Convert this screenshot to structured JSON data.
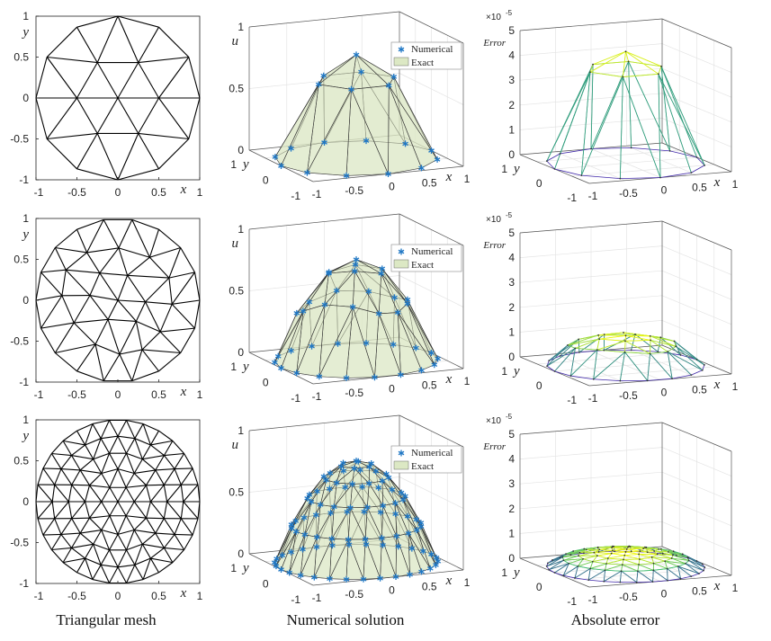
{
  "column_titles": [
    "Triangular mesh",
    "Numerical solution",
    "Absolute error"
  ],
  "colors": {
    "mesh": "#000000",
    "numerical_marker": "#1f77c4",
    "exact_fill": "#dce8c4",
    "error_low": "#3e26a8",
    "error_mid": "#35b779",
    "error_high": "#f9fb0e"
  },
  "chart_data": [
    {
      "row": 1,
      "type": "mesh",
      "column": "Triangular mesh",
      "xlabel": "x",
      "ylabel": "y",
      "xticks": [
        "-1",
        "-0.5",
        "0",
        "0.5",
        "1"
      ],
      "yticks": [
        "1",
        "0.5",
        "0",
        "-0.5",
        "-1"
      ],
      "xlim": [
        -1,
        1
      ],
      "ylim": [
        -1,
        1
      ],
      "rings": 2
    },
    {
      "row": 1,
      "type": "surface3d",
      "column": "Numerical solution",
      "xlabel": "x",
      "ylabel": "y",
      "zlabel": "u",
      "xticks": [
        "-1",
        "-0.5",
        "0",
        "0.5",
        "1"
      ],
      "yticks": [
        "1",
        "0",
        "-1"
      ],
      "zticks": [
        "0",
        "0.5",
        "1"
      ],
      "zlim": [
        0,
        1
      ],
      "u_max": 0.84,
      "legend": [
        "Numerical",
        "Exact"
      ],
      "legend_placement": "right"
    },
    {
      "row": 1,
      "type": "mesh3d",
      "column": "Absolute error",
      "xlabel": "x",
      "ylabel": "y",
      "zlabel": "Error",
      "zmultiplier": "×10",
      "zexponent": "-5",
      "xticks": [
        "-1",
        "-0.5",
        "0",
        "0.5",
        "1"
      ],
      "yticks": [
        "1",
        "0",
        "-1"
      ],
      "zticks": [
        "0",
        "1",
        "2",
        "3",
        "4",
        "5"
      ],
      "zlim": [
        0,
        5
      ],
      "error_max": 4.5
    },
    {
      "row": 2,
      "type": "mesh",
      "column": "Triangular mesh",
      "xlabel": "x",
      "ylabel": "y",
      "xticks": [
        "-1",
        "-0.5",
        "0",
        "0.5",
        "1"
      ],
      "yticks": [
        "1",
        "0.5",
        "0",
        "-0.5",
        "-1"
      ],
      "xlim": [
        -1,
        1
      ],
      "ylim": [
        -1,
        1
      ],
      "rings": 3
    },
    {
      "row": 2,
      "type": "surface3d",
      "column": "Numerical solution",
      "xlabel": "x",
      "ylabel": "y",
      "zlabel": "u",
      "xticks": [
        "-1",
        "-0.5",
        "0",
        "0.5",
        "1"
      ],
      "yticks": [
        "1",
        "0",
        "-1"
      ],
      "zticks": [
        "0",
        "0.5",
        "1"
      ],
      "zlim": [
        0,
        1
      ],
      "u_max": 0.82,
      "legend": [
        "Numerical",
        "Exact"
      ],
      "legend_placement": "right"
    },
    {
      "row": 2,
      "type": "mesh3d",
      "column": "Absolute error",
      "xlabel": "x",
      "ylabel": "y",
      "zlabel": "Error",
      "zmultiplier": "×10",
      "zexponent": "-5",
      "xticks": [
        "-1",
        "-0.5",
        "0",
        "0.5",
        "1"
      ],
      "yticks": [
        "1",
        "0",
        "-1"
      ],
      "zticks": [
        "0",
        "1",
        "2",
        "3",
        "4",
        "5"
      ],
      "zlim": [
        0,
        5
      ],
      "error_max": 1.2
    },
    {
      "row": 3,
      "type": "mesh",
      "column": "Triangular mesh",
      "xlabel": "x",
      "ylabel": "y",
      "xticks": [
        "-1",
        "-0.5",
        "0",
        "0.5",
        "1"
      ],
      "yticks": [
        "1",
        "0.5",
        "0",
        "-0.5",
        "-1"
      ],
      "xlim": [
        -1,
        1
      ],
      "ylim": [
        -1,
        1
      ],
      "rings": 5
    },
    {
      "row": 3,
      "type": "surface3d",
      "column": "Numerical solution",
      "xlabel": "x",
      "ylabel": "y",
      "zlabel": "u",
      "xticks": [
        "-1",
        "-0.5",
        "0",
        "0.5",
        "1"
      ],
      "yticks": [
        "1",
        "0",
        "-1"
      ],
      "zticks": [
        "0",
        "0.5",
        "1"
      ],
      "zlim": [
        0,
        1
      ],
      "u_max": 0.82,
      "legend": [
        "Numerical",
        "Exact"
      ],
      "legend_placement": "right"
    },
    {
      "row": 3,
      "type": "mesh3d",
      "column": "Absolute error",
      "xlabel": "x",
      "ylabel": "y",
      "zlabel": "Error",
      "zmultiplier": "×10",
      "zexponent": "-5",
      "xticks": [
        "-1",
        "-0.5",
        "0",
        "0.5",
        "1"
      ],
      "yticks": [
        "1",
        "0",
        "-1"
      ],
      "zticks": [
        "0",
        "1",
        "2",
        "3",
        "4",
        "5"
      ],
      "zlim": [
        0,
        5
      ],
      "error_max": 0.6
    }
  ]
}
